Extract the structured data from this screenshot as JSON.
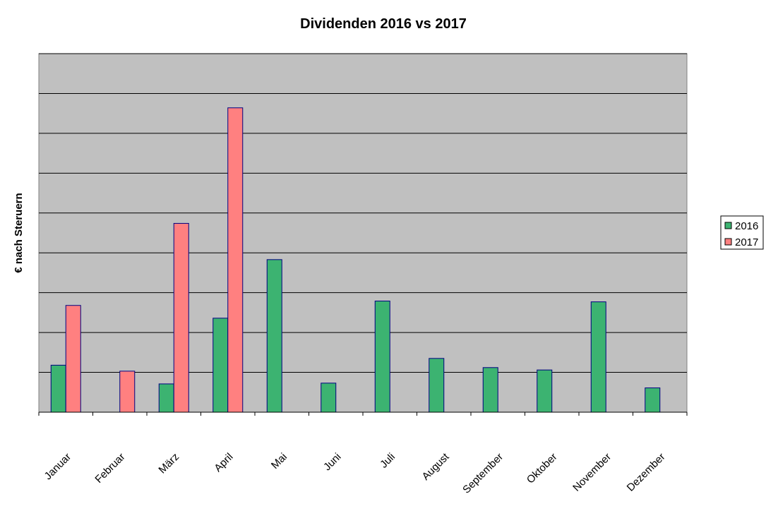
{
  "chart_data": {
    "type": "bar",
    "title": "Dividenden 2016 vs 2017",
    "xlabel": "",
    "ylabel": "€ nach Steruern",
    "ylim": [
      0,
      9
    ],
    "grid": true,
    "legend_position": "right",
    "categories": [
      "Januar",
      "Februar",
      "März",
      "April",
      "Mai",
      "Juni",
      "Juli",
      "August",
      "September",
      "Oktober",
      "November",
      "Dezember"
    ],
    "series": [
      {
        "name": "2016",
        "color": "#3CB371",
        "values": [
          1.18,
          0,
          0.71,
          2.36,
          3.83,
          0.73,
          2.79,
          1.35,
          1.12,
          1.06,
          2.77,
          0.61
        ]
      },
      {
        "name": "2017",
        "color": "#FF8080",
        "values": [
          2.68,
          1.03,
          4.74,
          7.64,
          0,
          0,
          0,
          0,
          0,
          0,
          0,
          0
        ]
      }
    ]
  },
  "colors": {
    "plot_background": "#C0C0C0",
    "gridline": "#000000",
    "bar_outline": "#000080"
  }
}
